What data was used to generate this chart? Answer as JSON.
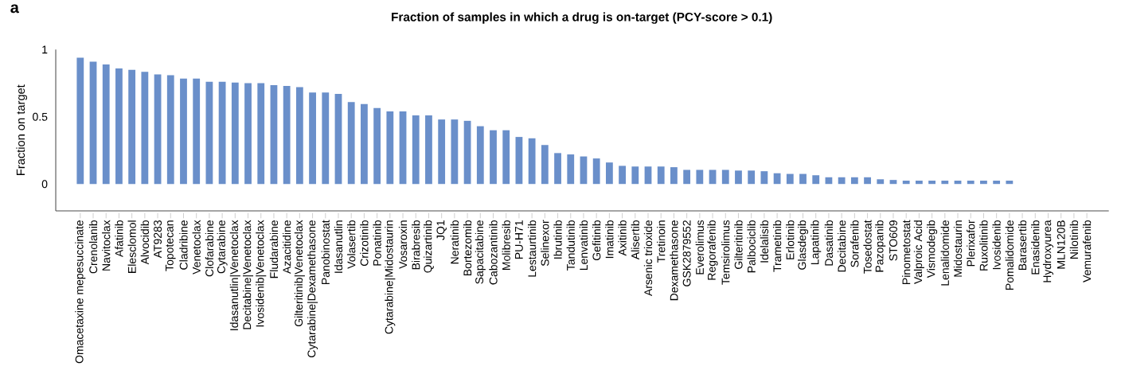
{
  "chart_data": {
    "type": "bar",
    "title": "Fraction of samples in which a drug is on-target (PCY-score > 0.1)",
    "ylabel": "Fraction on target",
    "annotations": [
      "a"
    ],
    "categories": [
      "Omacetaxine mepesuccinate",
      "Crenolanib",
      "Navitoclax",
      "Afatinib",
      "Elesclomol",
      "Alvocidib",
      "AT9283",
      "Topotecan",
      "Cladribine",
      "Venetoclax",
      "Clofarabine",
      "Cytarabine",
      "Idasanutlin|Venetoclax",
      "Decitabine|Venetoclax",
      "Ivosidenib|Venetoclax",
      "Fludarabine",
      "Azacitidine",
      "Gilteritinib|Venetoclax",
      "Cytarabine|Dexamethasone",
      "Panobinostat",
      "Idasanutlin",
      "Volasertib",
      "Crizotinib",
      "Ponatinib",
      "Cytarabine|Midostaurin",
      "Vosaroxin",
      "Birabresib",
      "Quizartinib",
      "JQ1",
      "Neratinib",
      "Bortezomib",
      "Sapacitabine",
      "Cabozantinib",
      "Molibresib",
      "PU-H71",
      "Lestaurtinib",
      "Selinexor",
      "Ibrutinib",
      "Tandutinib",
      "Lenvatinib",
      "Gefitinib",
      "Imatinib",
      "Axitinib",
      "Alisertib",
      "Arsenic trioxide",
      "Tretinoin",
      "Dexamethasone",
      "GSK2879552",
      "Everolimus",
      "Regorafenib",
      "Temsirolimus",
      "Gilteritinib",
      "Palbociclib",
      "Idelalisib",
      "Trametinib",
      "Erlotinib",
      "Glasdegib",
      "Lapatinib",
      "Dasatinib",
      "Decitabine",
      "Sorafenib",
      "Tosedostat",
      "Pazopanib",
      "STO609",
      "Pinometostat",
      "Valproic Acid",
      "Vismodegib",
      "Lenalidomide",
      "Midostaurin",
      "Plerixafor",
      "Ruxolitinib",
      "Ivosidenib",
      "Pomalidomide",
      "Barasertib",
      "Enasidenib",
      "Hydroxyurea",
      "MLN120B",
      "Nilotinib",
      "Vemurafenib"
    ],
    "values": [
      0.94,
      0.91,
      0.89,
      0.86,
      0.85,
      0.835,
      0.815,
      0.81,
      0.785,
      0.785,
      0.76,
      0.76,
      0.755,
      0.75,
      0.75,
      0.735,
      0.73,
      0.72,
      0.68,
      0.68,
      0.67,
      0.61,
      0.595,
      0.565,
      0.54,
      0.54,
      0.51,
      0.51,
      0.48,
      0.48,
      0.47,
      0.43,
      0.4,
      0.4,
      0.35,
      0.34,
      0.29,
      0.23,
      0.22,
      0.205,
      0.19,
      0.16,
      0.135,
      0.13,
      0.13,
      0.13,
      0.125,
      0.105,
      0.105,
      0.105,
      0.105,
      0.1,
      0.1,
      0.095,
      0.08,
      0.075,
      0.075,
      0.065,
      0.05,
      0.05,
      0.05,
      0.05,
      0.035,
      0.03,
      0.025,
      0.025,
      0.025,
      0.025,
      0.025,
      0.025,
      0.025,
      0.025,
      0.025,
      0,
      0,
      0,
      0,
      0,
      0
    ],
    "color": "#6a8fca",
    "ylim": [
      -0.2,
      1
    ],
    "yticks": [
      0,
      0.5,
      1
    ]
  }
}
